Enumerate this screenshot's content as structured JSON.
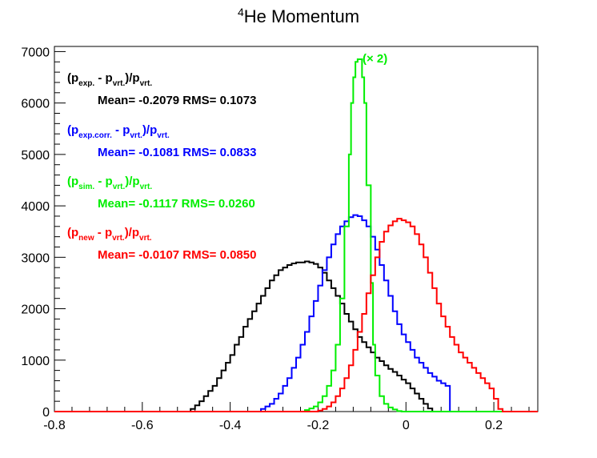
{
  "chart_data": {
    "type": "histogram-step",
    "title": {
      "sup": "4",
      "main": "He Momentum"
    },
    "xlim": [
      -0.8,
      0.3
    ],
    "ylim": [
      0,
      7100
    ],
    "x_ticks": [
      "-0.8",
      "-0.6",
      "-0.4",
      "-0.2",
      "0",
      "0.2"
    ],
    "x_tick_values": [
      -0.8,
      -0.6,
      -0.4,
      -0.2,
      0,
      0.2
    ],
    "y_ticks": [
      "0",
      "1000",
      "2000",
      "3000",
      "4000",
      "5000",
      "6000",
      "7000"
    ],
    "y_tick_values": [
      0,
      1000,
      2000,
      3000,
      4000,
      5000,
      6000,
      7000
    ],
    "series": [
      {
        "color": "#000000",
        "label_parts": [
          "(p",
          "exp.",
          " - p",
          "vrt.",
          ")/p",
          "vrt."
        ],
        "stats": "Mean= -0.2079   RMS= 0.1073",
        "points": [
          [
            -0.8,
            0
          ],
          [
            -0.5,
            0
          ],
          [
            -0.49,
            50
          ],
          [
            -0.48,
            120
          ],
          [
            -0.47,
            200
          ],
          [
            -0.46,
            300
          ],
          [
            -0.45,
            400
          ],
          [
            -0.44,
            500
          ],
          [
            -0.43,
            650
          ],
          [
            -0.42,
            800
          ],
          [
            -0.41,
            950
          ],
          [
            -0.4,
            1100
          ],
          [
            -0.39,
            1300
          ],
          [
            -0.38,
            1450
          ],
          [
            -0.37,
            1650
          ],
          [
            -0.36,
            1800
          ],
          [
            -0.35,
            1950
          ],
          [
            -0.34,
            2100
          ],
          [
            -0.33,
            2250
          ],
          [
            -0.32,
            2400
          ],
          [
            -0.31,
            2550
          ],
          [
            -0.3,
            2650
          ],
          [
            -0.29,
            2750
          ],
          [
            -0.28,
            2800
          ],
          [
            -0.27,
            2850
          ],
          [
            -0.26,
            2880
          ],
          [
            -0.25,
            2900
          ],
          [
            -0.24,
            2900
          ],
          [
            -0.23,
            2920
          ],
          [
            -0.22,
            2900
          ],
          [
            -0.21,
            2870
          ],
          [
            -0.2,
            2800
          ],
          [
            -0.19,
            2700
          ],
          [
            -0.18,
            2550
          ],
          [
            -0.17,
            2400
          ],
          [
            -0.16,
            2250
          ],
          [
            -0.15,
            2100
          ],
          [
            -0.14,
            1900
          ],
          [
            -0.13,
            1750
          ],
          [
            -0.12,
            1600
          ],
          [
            -0.11,
            1450
          ],
          [
            -0.1,
            1350
          ],
          [
            -0.09,
            1250
          ],
          [
            -0.08,
            1150
          ],
          [
            -0.07,
            1050
          ],
          [
            -0.06,
            980
          ],
          [
            -0.05,
            900
          ],
          [
            -0.04,
            830
          ],
          [
            -0.03,
            770
          ],
          [
            -0.02,
            700
          ],
          [
            -0.01,
            620
          ],
          [
            0.0,
            550
          ],
          [
            0.01,
            450
          ],
          [
            0.02,
            350
          ],
          [
            0.03,
            250
          ],
          [
            0.04,
            150
          ],
          [
            0.05,
            60
          ],
          [
            0.06,
            0
          ],
          [
            0.3,
            0
          ]
        ]
      },
      {
        "color": "#0000ff",
        "label_parts": [
          "(p",
          "exp.corr.",
          " - p",
          "vrt.",
          ")/p",
          "vrt."
        ],
        "stats": "Mean= -0.1081   RMS= 0.0833",
        "points": [
          [
            -0.8,
            0
          ],
          [
            -0.34,
            0
          ],
          [
            -0.33,
            50
          ],
          [
            -0.32,
            100
          ],
          [
            -0.31,
            150
          ],
          [
            -0.3,
            250
          ],
          [
            -0.29,
            350
          ],
          [
            -0.28,
            500
          ],
          [
            -0.27,
            650
          ],
          [
            -0.26,
            850
          ],
          [
            -0.25,
            1050
          ],
          [
            -0.24,
            1300
          ],
          [
            -0.23,
            1550
          ],
          [
            -0.22,
            1850
          ],
          [
            -0.21,
            2150
          ],
          [
            -0.2,
            2450
          ],
          [
            -0.19,
            2750
          ],
          [
            -0.18,
            3000
          ],
          [
            -0.17,
            3250
          ],
          [
            -0.16,
            3450
          ],
          [
            -0.15,
            3600
          ],
          [
            -0.14,
            3700
          ],
          [
            -0.13,
            3780
          ],
          [
            -0.12,
            3820
          ],
          [
            -0.11,
            3800
          ],
          [
            -0.1,
            3720
          ],
          [
            -0.09,
            3600
          ],
          [
            -0.08,
            3400
          ],
          [
            -0.07,
            3150
          ],
          [
            -0.06,
            2850
          ],
          [
            -0.05,
            2550
          ],
          [
            -0.04,
            2250
          ],
          [
            -0.03,
            1950
          ],
          [
            -0.02,
            1700
          ],
          [
            -0.01,
            1500
          ],
          [
            0.0,
            1350
          ],
          [
            0.01,
            1200
          ],
          [
            0.02,
            1050
          ],
          [
            0.03,
            950
          ],
          [
            0.04,
            850
          ],
          [
            0.05,
            750
          ],
          [
            0.06,
            680
          ],
          [
            0.07,
            600
          ],
          [
            0.08,
            550
          ],
          [
            0.09,
            500
          ],
          [
            0.1,
            0
          ],
          [
            0.3,
            0
          ]
        ]
      },
      {
        "color": "#00ee00",
        "label_parts": [
          "(p",
          "sim.",
          " - p",
          "vrt.",
          ")/p",
          "vrt."
        ],
        "stats": "Mean= -0.1117   RMS= 0.0260",
        "annotation": "(× 2)",
        "points": [
          [
            -0.8,
            0
          ],
          [
            -0.24,
            0
          ],
          [
            -0.23,
            30
          ],
          [
            -0.22,
            60
          ],
          [
            -0.21,
            100
          ],
          [
            -0.2,
            180
          ],
          [
            -0.19,
            300
          ],
          [
            -0.18,
            500
          ],
          [
            -0.17,
            800
          ],
          [
            -0.16,
            1300
          ],
          [
            -0.15,
            2200
          ],
          [
            -0.14,
            3600
          ],
          [
            -0.13,
            5000
          ],
          [
            -0.125,
            6000
          ],
          [
            -0.12,
            6500
          ],
          [
            -0.115,
            6800
          ],
          [
            -0.11,
            6850
          ],
          [
            -0.105,
            6850
          ],
          [
            -0.1,
            6500
          ],
          [
            -0.095,
            6000
          ],
          [
            -0.09,
            4400
          ],
          [
            -0.08,
            2500
          ],
          [
            -0.075,
            1300
          ],
          [
            -0.07,
            700
          ],
          [
            -0.06,
            300
          ],
          [
            -0.05,
            150
          ],
          [
            -0.04,
            80
          ],
          [
            -0.03,
            40
          ],
          [
            -0.02,
            10
          ],
          [
            -0.01,
            0
          ],
          [
            0.3,
            0
          ]
        ]
      },
      {
        "color": "#ff0000",
        "label_parts": [
          "(p",
          "new",
          " - p",
          "vrt.",
          ")/p",
          "vrt."
        ],
        "stats": "Mean= -0.0107   RMS= 0.0850",
        "points": [
          [
            -0.8,
            0
          ],
          [
            -0.21,
            0
          ],
          [
            -0.2,
            20
          ],
          [
            -0.19,
            50
          ],
          [
            -0.18,
            100
          ],
          [
            -0.17,
            180
          ],
          [
            -0.16,
            300
          ],
          [
            -0.15,
            450
          ],
          [
            -0.14,
            650
          ],
          [
            -0.13,
            900
          ],
          [
            -0.12,
            1200
          ],
          [
            -0.11,
            1550
          ],
          [
            -0.1,
            1900
          ],
          [
            -0.09,
            2300
          ],
          [
            -0.08,
            2650
          ],
          [
            -0.07,
            3000
          ],
          [
            -0.06,
            3300
          ],
          [
            -0.05,
            3500
          ],
          [
            -0.04,
            3620
          ],
          [
            -0.03,
            3700
          ],
          [
            -0.02,
            3750
          ],
          [
            -0.01,
            3720
          ],
          [
            0.0,
            3680
          ],
          [
            0.01,
            3600
          ],
          [
            0.02,
            3450
          ],
          [
            0.03,
            3250
          ],
          [
            0.04,
            3000
          ],
          [
            0.05,
            2700
          ],
          [
            0.06,
            2400
          ],
          [
            0.07,
            2100
          ],
          [
            0.08,
            1850
          ],
          [
            0.09,
            1650
          ],
          [
            0.1,
            1450
          ],
          [
            0.11,
            1300
          ],
          [
            0.12,
            1150
          ],
          [
            0.13,
            1050
          ],
          [
            0.14,
            950
          ],
          [
            0.15,
            850
          ],
          [
            0.16,
            750
          ],
          [
            0.17,
            650
          ],
          [
            0.18,
            550
          ],
          [
            0.19,
            450
          ],
          [
            0.2,
            250
          ],
          [
            0.21,
            50
          ],
          [
            0.22,
            0
          ],
          [
            0.3,
            0
          ]
        ]
      }
    ]
  }
}
